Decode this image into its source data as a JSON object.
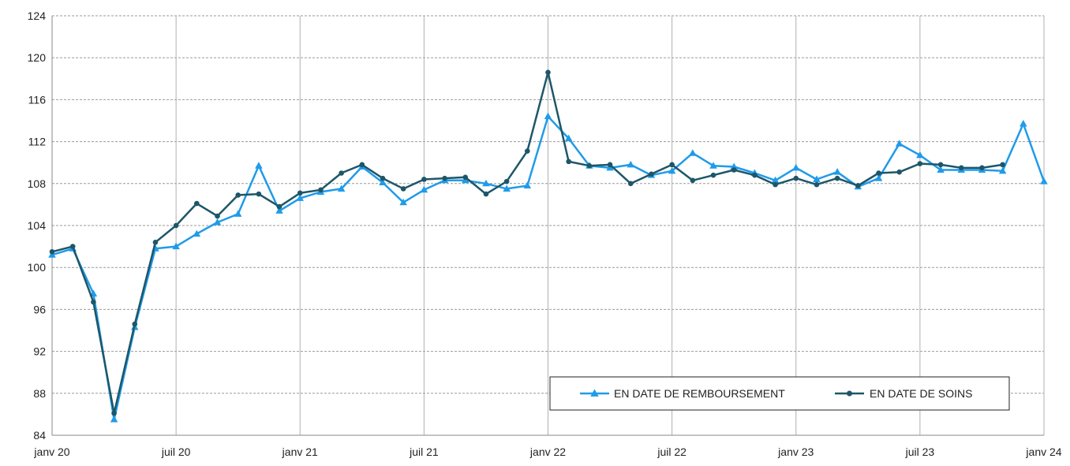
{
  "chart_data": {
    "type": "line",
    "x_ticks": [
      "janv 20",
      "juil 20",
      "janv 21",
      "juil 21",
      "janv 22",
      "juil 22",
      "janv 23",
      "juil 23",
      "janv 24"
    ],
    "y_ticks": [
      84,
      88,
      92,
      96,
      100,
      104,
      108,
      112,
      116,
      120,
      124
    ],
    "ylim": [
      84,
      124
    ],
    "x_start": "2020-01",
    "grid": true,
    "legend_position": "bottom-right",
    "series": [
      {
        "name": "EN DATE DE REMBOURSEMENT",
        "color": "#1f9bea",
        "marker": "triangle",
        "values": [
          101.2,
          101.8,
          97.5,
          85.5,
          94.3,
          101.8,
          102.0,
          103.2,
          104.3,
          105.1,
          109.7,
          105.4,
          106.6,
          107.2,
          107.5,
          109.6,
          108.1,
          106.2,
          107.4,
          108.3,
          108.3,
          108.0,
          107.5,
          107.8,
          114.4,
          112.3,
          109.7,
          109.5,
          109.8,
          108.8,
          109.2,
          110.9,
          109.7,
          109.6,
          109.0,
          108.3,
          109.5,
          108.4,
          109.1,
          107.7,
          108.5,
          111.8,
          110.7,
          109.3,
          109.3,
          109.3,
          109.2,
          113.7,
          108.2
        ]
      },
      {
        "name": "EN DATE DE SOINS",
        "color": "#1e5669",
        "marker": "circle",
        "values": [
          101.5,
          102.0,
          96.7,
          86.1,
          94.6,
          102.4,
          104.0,
          106.1,
          104.9,
          106.9,
          107.0,
          105.8,
          107.1,
          107.4,
          109.0,
          109.8,
          108.5,
          107.5,
          108.4,
          108.5,
          108.6,
          107.0,
          108.2,
          111.1,
          118.6,
          110.1,
          109.7,
          109.8,
          108.0,
          108.9,
          109.8,
          108.3,
          108.8,
          109.3,
          108.8,
          107.9,
          108.5,
          107.9,
          108.5,
          107.8,
          109.0,
          109.1,
          109.9,
          109.8,
          109.5,
          109.5,
          109.8
        ]
      }
    ]
  }
}
